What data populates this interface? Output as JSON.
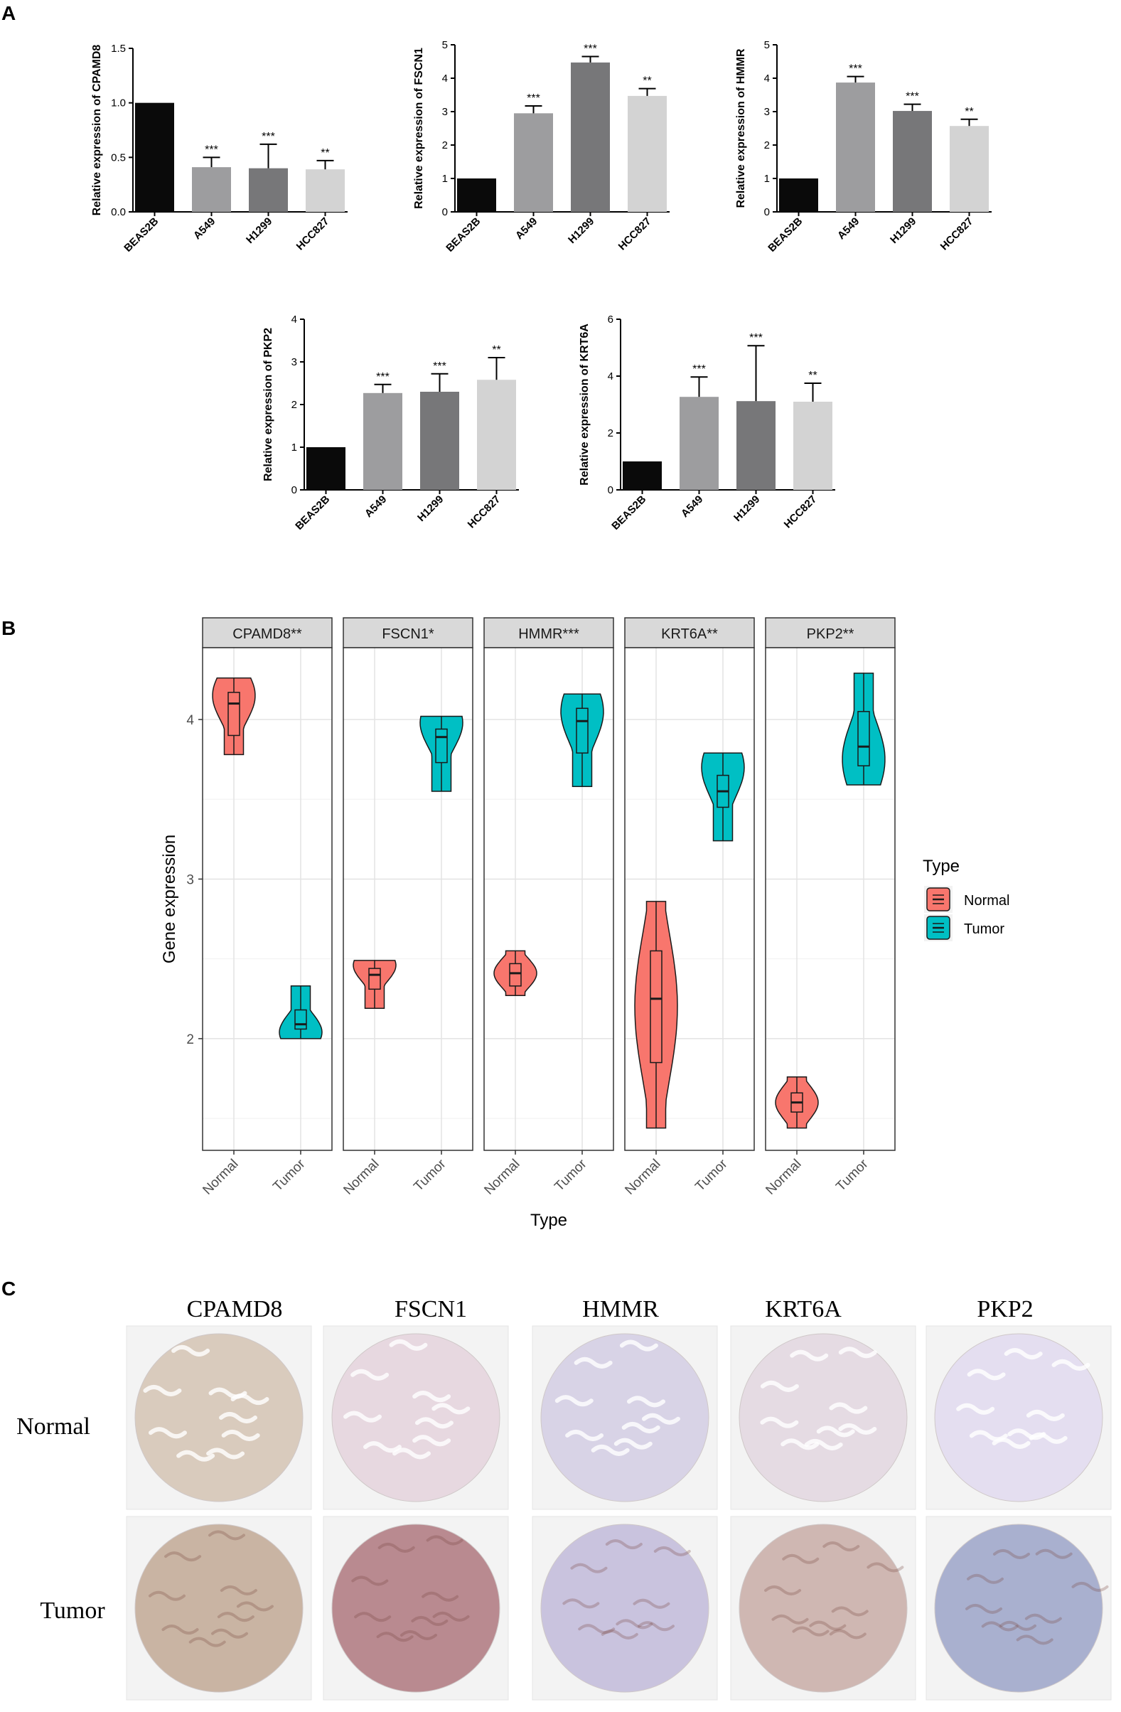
{
  "panels": {
    "A": "A",
    "B": "B",
    "C": "C"
  },
  "chart_data": [
    {
      "panel": "A",
      "type": "bar",
      "gene": "CPAMD8",
      "ylabel": "Relative expression of CPAMD8",
      "categories": [
        "BEAS2B",
        "A549",
        "H1299",
        "HCC827"
      ],
      "values": [
        1.0,
        0.41,
        0.4,
        0.39
      ],
      "errors": [
        0,
        0.09,
        0.22,
        0.08
      ],
      "significance": [
        "",
        "***",
        "***",
        "**"
      ],
      "ylim": [
        0,
        1.5
      ],
      "yticks": [
        0.0,
        0.5,
        1.0,
        1.5
      ],
      "ytick_labels": [
        "0.0",
        "0.5",
        "1.0",
        "1.5"
      ],
      "colors": [
        "#0a0a0a",
        "#9d9d9f",
        "#777779",
        "#d3d3d3"
      ]
    },
    {
      "panel": "A",
      "type": "bar",
      "gene": "FSCN1",
      "ylabel": "Relative expression of FSCN1",
      "categories": [
        "BEAS2B",
        "A549",
        "H1299",
        "HCC827"
      ],
      "values": [
        1.0,
        2.95,
        4.47,
        3.47
      ],
      "errors": [
        0,
        0.22,
        0.18,
        0.22
      ],
      "significance": [
        "",
        "***",
        "***",
        "**"
      ],
      "ylim": [
        0,
        5
      ],
      "yticks": [
        0,
        1,
        2,
        3,
        4,
        5
      ],
      "ytick_labels": [
        "0",
        "1",
        "2",
        "3",
        "4",
        "5"
      ],
      "colors": [
        "#0a0a0a",
        "#9d9d9f",
        "#777779",
        "#d3d3d3"
      ]
    },
    {
      "panel": "A",
      "type": "bar",
      "gene": "HMMR",
      "ylabel": "Relative expression of HMMR",
      "categories": [
        "BEAS2B",
        "A549",
        "H1299",
        "HCC827"
      ],
      "values": [
        1.0,
        3.87,
        3.02,
        2.57
      ],
      "errors": [
        0,
        0.18,
        0.2,
        0.2
      ],
      "significance": [
        "",
        "***",
        "***",
        "**"
      ],
      "ylim": [
        0,
        5
      ],
      "yticks": [
        0,
        1,
        2,
        3,
        4,
        5
      ],
      "ytick_labels": [
        "0",
        "1",
        "2",
        "3",
        "4",
        "5"
      ],
      "colors": [
        "#0a0a0a",
        "#9d9d9f",
        "#777779",
        "#d3d3d3"
      ]
    },
    {
      "panel": "A",
      "type": "bar",
      "gene": "PKP2",
      "ylabel": "Relative expression of PKP2",
      "categories": [
        "BEAS2B",
        "A549",
        "H1299",
        "HCC827"
      ],
      "values": [
        1.0,
        2.27,
        2.3,
        2.58
      ],
      "errors": [
        0,
        0.2,
        0.42,
        0.52
      ],
      "significance": [
        "",
        "***",
        "***",
        "**"
      ],
      "ylim": [
        0,
        4
      ],
      "yticks": [
        0,
        1,
        2,
        3,
        4
      ],
      "ytick_labels": [
        "0",
        "1",
        "2",
        "3",
        "4"
      ],
      "colors": [
        "#0a0a0a",
        "#9d9d9f",
        "#777779",
        "#d3d3d3"
      ]
    },
    {
      "panel": "A",
      "type": "bar",
      "gene": "KRT6A",
      "ylabel": "Relative expression of KRT6A",
      "categories": [
        "BEAS2B",
        "A549",
        "H1299",
        "HCC827"
      ],
      "values": [
        1.0,
        3.27,
        3.12,
        3.1
      ],
      "errors": [
        0,
        0.7,
        1.95,
        0.65
      ],
      "significance": [
        "",
        "***",
        "***",
        "**"
      ],
      "ylim": [
        0,
        6
      ],
      "yticks": [
        0,
        2,
        4,
        6
      ],
      "ytick_labels": [
        "0",
        "2",
        "4",
        "6"
      ],
      "colors": [
        "#0a0a0a",
        "#9d9d9f",
        "#777779",
        "#d3d3d3"
      ]
    },
    {
      "panel": "B",
      "type": "violin",
      "xlabel": "Type",
      "ylabel": "Gene expression",
      "ylim": [
        1.3,
        4.45
      ],
      "yticks": [
        2,
        3,
        4
      ],
      "ytick_labels": [
        "2",
        "3",
        "4"
      ],
      "minor_gridlines": [
        1.5,
        2.5,
        3.5
      ],
      "x_categories": [
        "Normal",
        "Tumor"
      ],
      "legend": {
        "title": "Type",
        "items": [
          {
            "label": "Normal",
            "color": "#F8766D"
          },
          {
            "label": "Tumor",
            "color": "#00BFC4"
          }
        ]
      },
      "facets": [
        {
          "label": "CPAMD8**",
          "groups": [
            {
              "type": "Normal",
              "min": 3.78,
              "q1": 3.9,
              "median": 4.1,
              "q3": 4.17,
              "max": 4.26,
              "mode": 4.15
            },
            {
              "type": "Tumor",
              "min": 2.0,
              "q1": 2.06,
              "median": 2.09,
              "q3": 2.18,
              "max": 2.33,
              "mode": 2.04
            }
          ]
        },
        {
          "label": "FSCN1*",
          "groups": [
            {
              "type": "Normal",
              "min": 2.19,
              "q1": 2.31,
              "median": 2.4,
              "q3": 2.44,
              "max": 2.49,
              "mode": 2.46
            },
            {
              "type": "Tumor",
              "min": 3.55,
              "q1": 3.73,
              "median": 3.89,
              "q3": 3.94,
              "max": 4.02,
              "mode": 3.98
            }
          ]
        },
        {
          "label": "HMMR***",
          "groups": [
            {
              "type": "Normal",
              "min": 2.27,
              "q1": 2.33,
              "median": 2.41,
              "q3": 2.47,
              "max": 2.55,
              "mode": 2.41
            },
            {
              "type": "Tumor",
              "min": 3.58,
              "q1": 3.79,
              "median": 3.99,
              "q3": 4.07,
              "max": 4.16,
              "mode": 4.05
            }
          ]
        },
        {
          "label": "KRT6A**",
          "groups": [
            {
              "type": "Normal",
              "min": 1.44,
              "q1": 1.85,
              "median": 2.25,
              "q3": 2.55,
              "max": 2.86,
              "mode": 2.2
            },
            {
              "type": "Tumor",
              "min": 3.24,
              "q1": 3.45,
              "median": 3.55,
              "q3": 3.65,
              "max": 3.79,
              "mode": 3.7
            }
          ]
        },
        {
          "label": "PKP2**",
          "groups": [
            {
              "type": "Normal",
              "min": 1.44,
              "q1": 1.54,
              "median": 1.6,
              "q3": 1.66,
              "max": 1.76,
              "mode": 1.6
            },
            {
              "type": "Tumor",
              "min": 3.59,
              "q1": 3.71,
              "median": 3.83,
              "q3": 4.05,
              "max": 4.29,
              "mode": 3.75
            }
          ]
        }
      ]
    }
  ],
  "ihc": {
    "genes": [
      "CPAMD8",
      "FSCN1",
      "HMMR",
      "KRT6A",
      "PKP2"
    ],
    "rows": [
      "Normal",
      "Tumor"
    ],
    "stain": {
      "Normal": [
        "#d9cbbd",
        "#e7d8e0",
        "#d8d3e6",
        "#e5dbe3",
        "#e4def0"
      ],
      "Tumor": [
        "#c9b4a3",
        "#b98a90",
        "#c9c3de",
        "#cfb7b2",
        "#a9b0cf"
      ]
    }
  }
}
